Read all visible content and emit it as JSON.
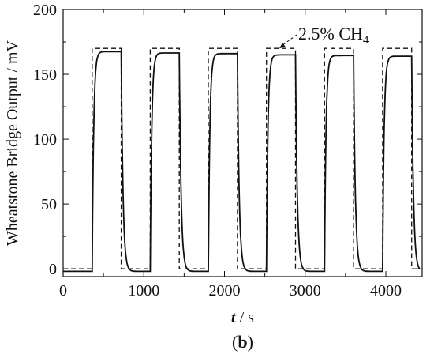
{
  "chart_data": {
    "type": "line",
    "xlabel_italic": "t",
    "xlabel_rest": " / s",
    "ylabel": "Wheatstone Bridge Output / mV",
    "xlim": [
      0,
      4450
    ],
    "ylim": [
      -6,
      200
    ],
    "xticks": [
      0,
      1000,
      2000,
      3000,
      4000
    ],
    "yticks": [
      0,
      50,
      100,
      150,
      200
    ],
    "grid": false,
    "annotation": {
      "text": "2.5% CH",
      "subscript": "4",
      "points_to": [
        2680,
        170
      ]
    },
    "panel_label": {
      "open": "(",
      "bold": "b",
      "close": ")"
    },
    "series": [
      {
        "style": "dashed",
        "x": [
          0,
          360,
          360,
          720,
          720,
          1080,
          1080,
          1440,
          1440,
          1800,
          1800,
          2160,
          2160,
          2520,
          2520,
          2880,
          2880,
          3240,
          3240,
          3600,
          3600,
          3960,
          3960,
          4320,
          4320,
          4420
        ],
        "y": [
          0,
          0,
          170,
          170,
          0,
          0,
          170,
          170,
          0,
          0,
          170,
          170,
          0,
          0,
          170,
          170,
          0,
          0,
          170,
          170,
          0,
          0,
          170,
          170,
          0,
          0
        ]
      },
      {
        "style": "solid",
        "pulses": [
          {
            "start": 360,
            "end": 720,
            "plateau": 167.5
          },
          {
            "start": 1080,
            "end": 1440,
            "plateau": 166.5
          },
          {
            "start": 1800,
            "end": 2160,
            "plateau": 166
          },
          {
            "start": 2520,
            "end": 2880,
            "plateau": 165
          },
          {
            "start": 3240,
            "end": 3600,
            "plateau": 164.5
          },
          {
            "start": 3960,
            "end": 4320,
            "plateau": 164
          }
        ],
        "baseline": -2,
        "x_end": 4420
      }
    ]
  }
}
